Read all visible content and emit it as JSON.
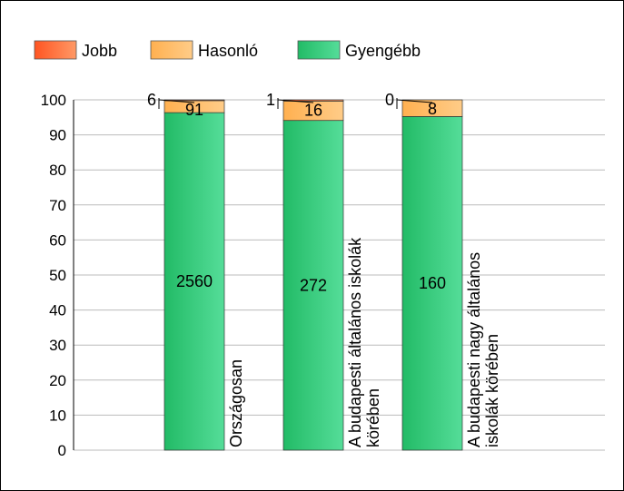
{
  "chart_data": {
    "type": "bar",
    "stacked": true,
    "normalized": true,
    "categories": [
      "Országosan",
      "A budapesti általános iskolák körében",
      "A budapesti nagy általános iskolák körében"
    ],
    "category_label_lines": [
      [
        "Országosan"
      ],
      [
        "A budapesti általános iskolák",
        "körében"
      ],
      [
        "A budapesti nagy általános",
        "iskolák körében"
      ]
    ],
    "series": [
      {
        "name": "Jobb",
        "values": [
          6,
          1,
          0
        ],
        "color": "#ff6633"
      },
      {
        "name": "Hasonló",
        "values": [
          91,
          16,
          8
        ],
        "color": "#ffbb66"
      },
      {
        "name": "Gyengébb",
        "values": [
          2560,
          272,
          160
        ],
        "color": "#33cc77"
      }
    ],
    "ylim": [
      0,
      100
    ],
    "yticks": [
      0,
      10,
      20,
      30,
      40,
      50,
      60,
      70,
      80,
      90,
      100
    ],
    "grid": true,
    "legend_position": "top-left"
  }
}
